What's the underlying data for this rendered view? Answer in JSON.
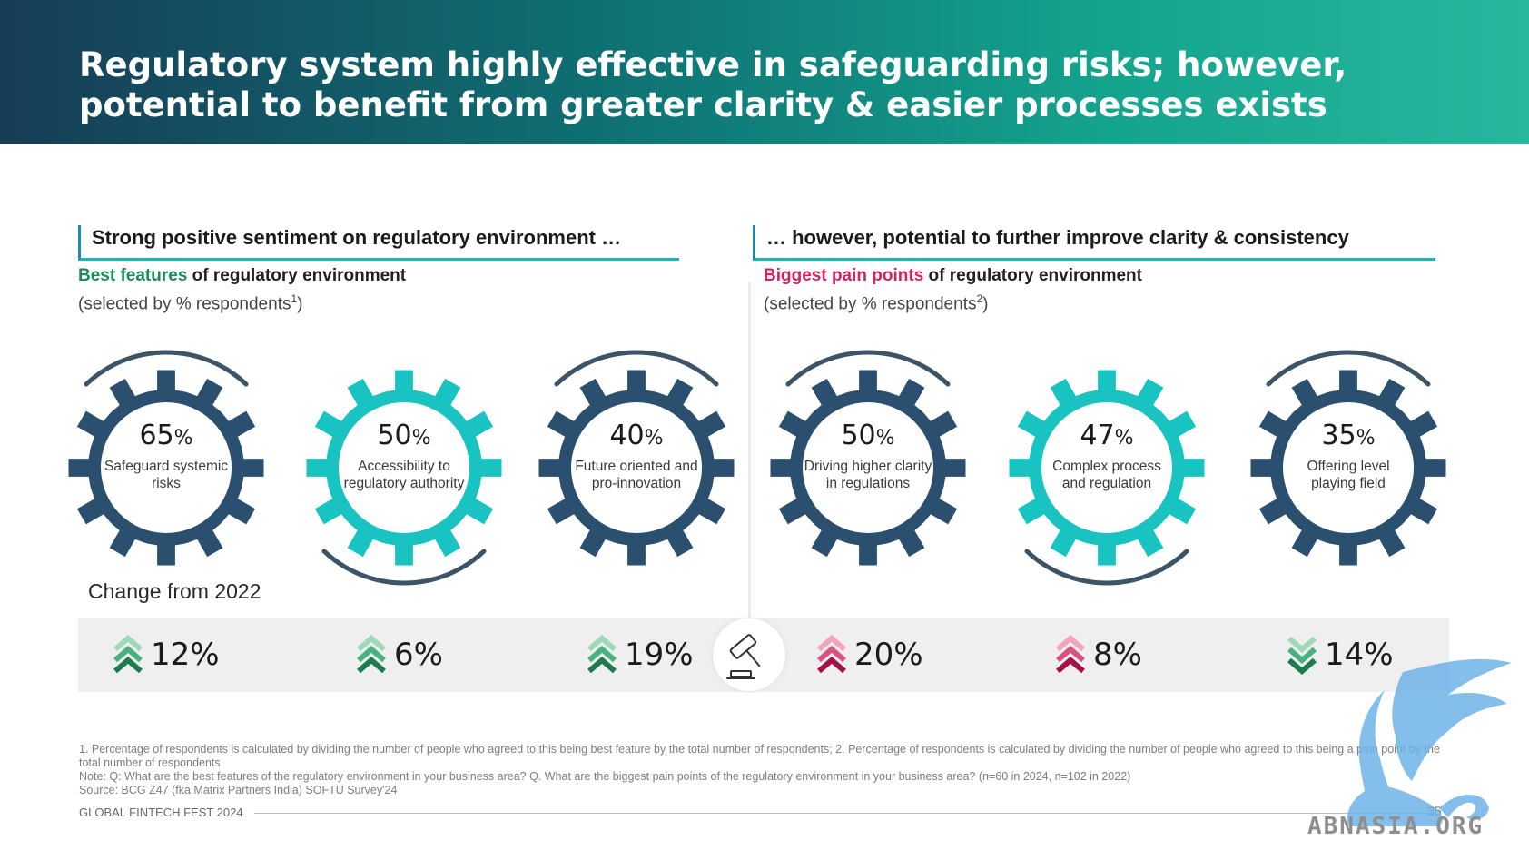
{
  "header": {
    "title": "Regulatory system highly effective in safeguarding risks; however, potential to benefit from greater clarity & easier processes exists"
  },
  "left_section": {
    "title": "Strong positive sentiment on regulatory environment …",
    "subtitle_highlight": "Best features",
    "subtitle_rest": " of regulatory environment",
    "note": "(selected by % respondents",
    "note_sup": "1",
    "note_end": ")"
  },
  "right_section": {
    "title": "… however, potential to further improve clarity & consistency",
    "subtitle_highlight": "Biggest pain points",
    "subtitle_rest": " of regulatory environment",
    "note": "(selected by % respondents",
    "note_sup": "2",
    "note_end": ")"
  },
  "gears": [
    {
      "value": "65",
      "unit": "%",
      "label": "Safeguard systemic risks",
      "color": "#2b4f6e",
      "arc": "top"
    },
    {
      "value": "50",
      "unit": "%",
      "label": "Accessibility to regulatory authority",
      "color": "#19c3c1",
      "arc": "bottom"
    },
    {
      "value": "40",
      "unit": "%",
      "label": "Future oriented and pro-innovation",
      "color": "#2b4f6e",
      "arc": "top"
    },
    {
      "value": "50",
      "unit": "%",
      "label": "Driving higher clarity in regulations",
      "color": "#2b4f6e",
      "arc": "top"
    },
    {
      "value": "47",
      "unit": "%",
      "label": "Complex process and regulation",
      "color": "#19c3c1",
      "arc": "bottom"
    },
    {
      "value": "35",
      "unit": "%",
      "label": "Offering level playing field",
      "color": "#2b4f6e",
      "arc": "top"
    }
  ],
  "change_label": "Change from 2022",
  "changes": [
    {
      "value": "12%",
      "direction": "up",
      "color": "green"
    },
    {
      "value": "6%",
      "direction": "up",
      "color": "green"
    },
    {
      "value": "19%",
      "direction": "up",
      "color": "green"
    },
    {
      "value": "20%",
      "direction": "up",
      "color": "pink"
    },
    {
      "value": "8%",
      "direction": "up",
      "color": "pink"
    },
    {
      "value": "14%",
      "direction": "down",
      "color": "green"
    }
  ],
  "colors": {
    "navy": "#2b4f6e",
    "teal": "#19c3c1",
    "green_chevron": "#1c8b5d",
    "pink_chevron": "#c2185b",
    "highlight_green": "#1c8b5d",
    "highlight_pink": "#d4245f"
  },
  "footnotes": [
    "1. Percentage of respondents is calculated by dividing the number of people who agreed to this being best feature by the total number of respondents; 2. Percentage of respondents is calculated by dividing the number of people who agreed to this being a pain point by the total number of respondents",
    "Note: Q: What are the best features of the regulatory environment in your business area? Q. What are the biggest pain points of the regulatory environment in your business area? (n=60 in 2024, n=102 in 2022)",
    "Source: BCG Z47 (fka Matrix Partners India) SOFTU Survey'24"
  ],
  "footer": {
    "event": "GLOBAL FINTECH FEST 2024",
    "page": "35"
  },
  "watermark": {
    "text": "ABNASIA.ORG",
    "icon": "griffin-icon"
  },
  "center_icon": "gavel-icon"
}
